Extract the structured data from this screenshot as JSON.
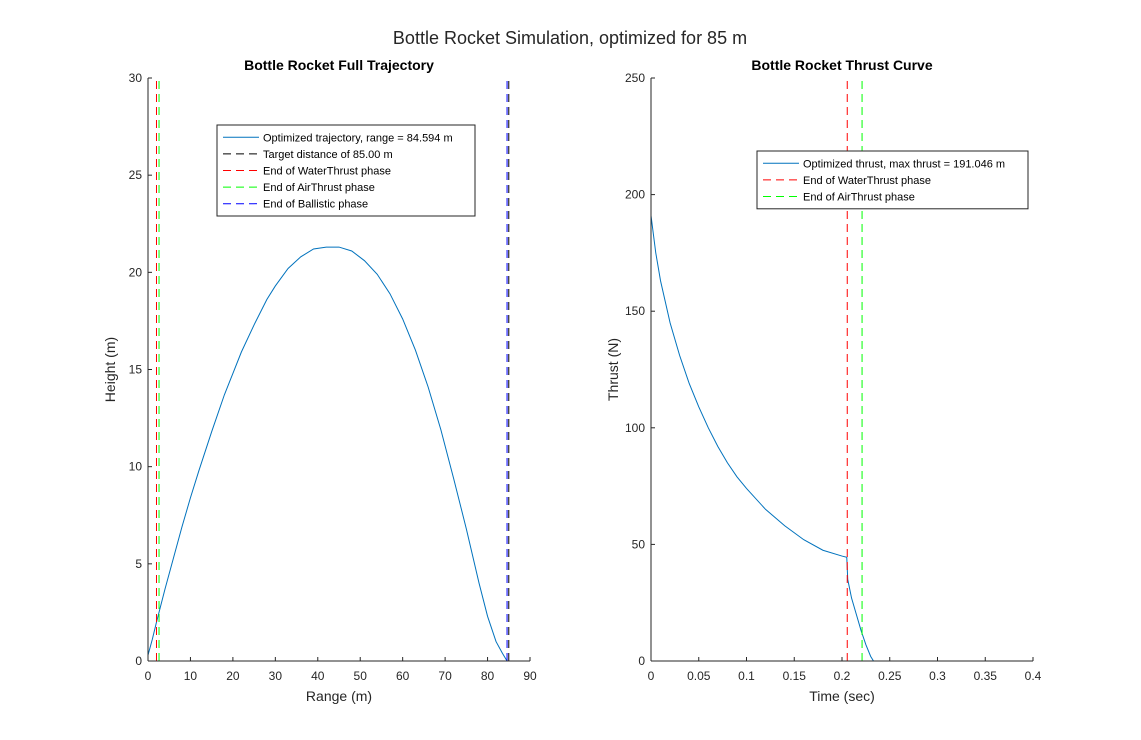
{
  "figure": {
    "suptitle": "Bottle Rocket Simulation, optimized for 85 m"
  },
  "chart_data": [
    {
      "type": "line",
      "title": "Bottle Rocket Full Trajectory",
      "xlabel": "Range (m)",
      "ylabel": "Height (m)",
      "xlim": [
        0,
        90
      ],
      "ylim": [
        0,
        30
      ],
      "xticks": [
        "0",
        "10",
        "20",
        "30",
        "40",
        "50",
        "60",
        "70",
        "80",
        "90"
      ],
      "yticks": [
        "0",
        "5",
        "10",
        "15",
        "20",
        "25",
        "30"
      ],
      "legend_position": "top-center",
      "series": [
        {
          "name": "Optimized trajectory, range = 84.594 m",
          "color": "#0072BD",
          "style": "solid",
          "x": [
            0,
            1,
            2,
            4,
            6,
            8,
            10,
            12,
            15,
            18,
            20,
            22,
            25,
            28,
            30,
            33,
            36,
            39,
            42,
            45,
            48,
            51,
            54,
            57,
            60,
            63,
            66,
            69,
            72,
            75,
            78,
            80,
            82,
            83.5,
            84.594
          ],
          "y": [
            0.3,
            1.1,
            2.0,
            3.7,
            5.3,
            6.9,
            8.4,
            9.8,
            11.8,
            13.7,
            14.8,
            15.9,
            17.3,
            18.6,
            19.3,
            20.2,
            20.8,
            21.2,
            21.3,
            21.3,
            21.1,
            20.6,
            19.9,
            18.9,
            17.6,
            16.0,
            14.1,
            11.9,
            9.4,
            6.8,
            4.0,
            2.3,
            1.0,
            0.4,
            0.0
          ]
        },
        {
          "name": "Target distance of 85.00 m",
          "color": "#000000",
          "style": "dashed",
          "x": [
            85.0,
            85.0
          ],
          "y": [
            0,
            30
          ]
        },
        {
          "name": "End of WaterThrust phase",
          "color": "#ff0000",
          "style": "dashed",
          "x": [
            2.0,
            2.0
          ],
          "y": [
            0,
            30
          ]
        },
        {
          "name": "End of AirThrust phase",
          "color": "#00ff00",
          "style": "dashed",
          "x": [
            2.6,
            2.6
          ],
          "y": [
            0,
            30
          ]
        },
        {
          "name": "End of Ballistic phase",
          "color": "#0000ff",
          "style": "dashed",
          "x": [
            84.594,
            84.594
          ],
          "y": [
            0,
            30
          ]
        }
      ]
    },
    {
      "type": "line",
      "title": "Bottle Rocket Thrust Curve",
      "xlabel": "Time (sec)",
      "ylabel": "Thrust (N)",
      "xlim": [
        0,
        0.4
      ],
      "ylim": [
        0,
        250
      ],
      "xticks": [
        "0",
        "0.05",
        "0.1",
        "0.15",
        "0.2",
        "0.25",
        "0.3",
        "0.35",
        "0.4"
      ],
      "yticks": [
        "0",
        "50",
        "100",
        "150",
        "200",
        "250"
      ],
      "legend_position": "top-right",
      "series": [
        {
          "name": "Optimized thrust, max thrust = 191.046 m",
          "color": "#0072BD",
          "style": "solid",
          "x": [
            0,
            0.005,
            0.01,
            0.02,
            0.03,
            0.04,
            0.05,
            0.06,
            0.07,
            0.08,
            0.09,
            0.1,
            0.12,
            0.14,
            0.16,
            0.18,
            0.2,
            0.205,
            0.206,
            0.21,
            0.215,
            0.22,
            0.225,
            0.23,
            0.233,
            0.25,
            0.3,
            0.35,
            0.4
          ],
          "y": [
            191.0,
            175.0,
            163.0,
            145.0,
            131.0,
            119.0,
            109.0,
            100.0,
            92.0,
            85.0,
            79.0,
            74.0,
            65.0,
            58.0,
            52.0,
            47.5,
            45.0,
            44.5,
            35.0,
            27.0,
            20.0,
            13.0,
            7.0,
            2.0,
            0.0,
            0.0,
            0.0,
            0.0,
            0.0
          ]
        },
        {
          "name": "End of WaterThrust phase",
          "color": "#ff0000",
          "style": "dashed",
          "x": [
            0.2055,
            0.2055
          ],
          "y": [
            0,
            250
          ]
        },
        {
          "name": "End of AirThrust phase",
          "color": "#00ff00",
          "style": "dashed",
          "x": [
            0.221,
            0.221
          ],
          "y": [
            0,
            250
          ]
        }
      ]
    }
  ]
}
